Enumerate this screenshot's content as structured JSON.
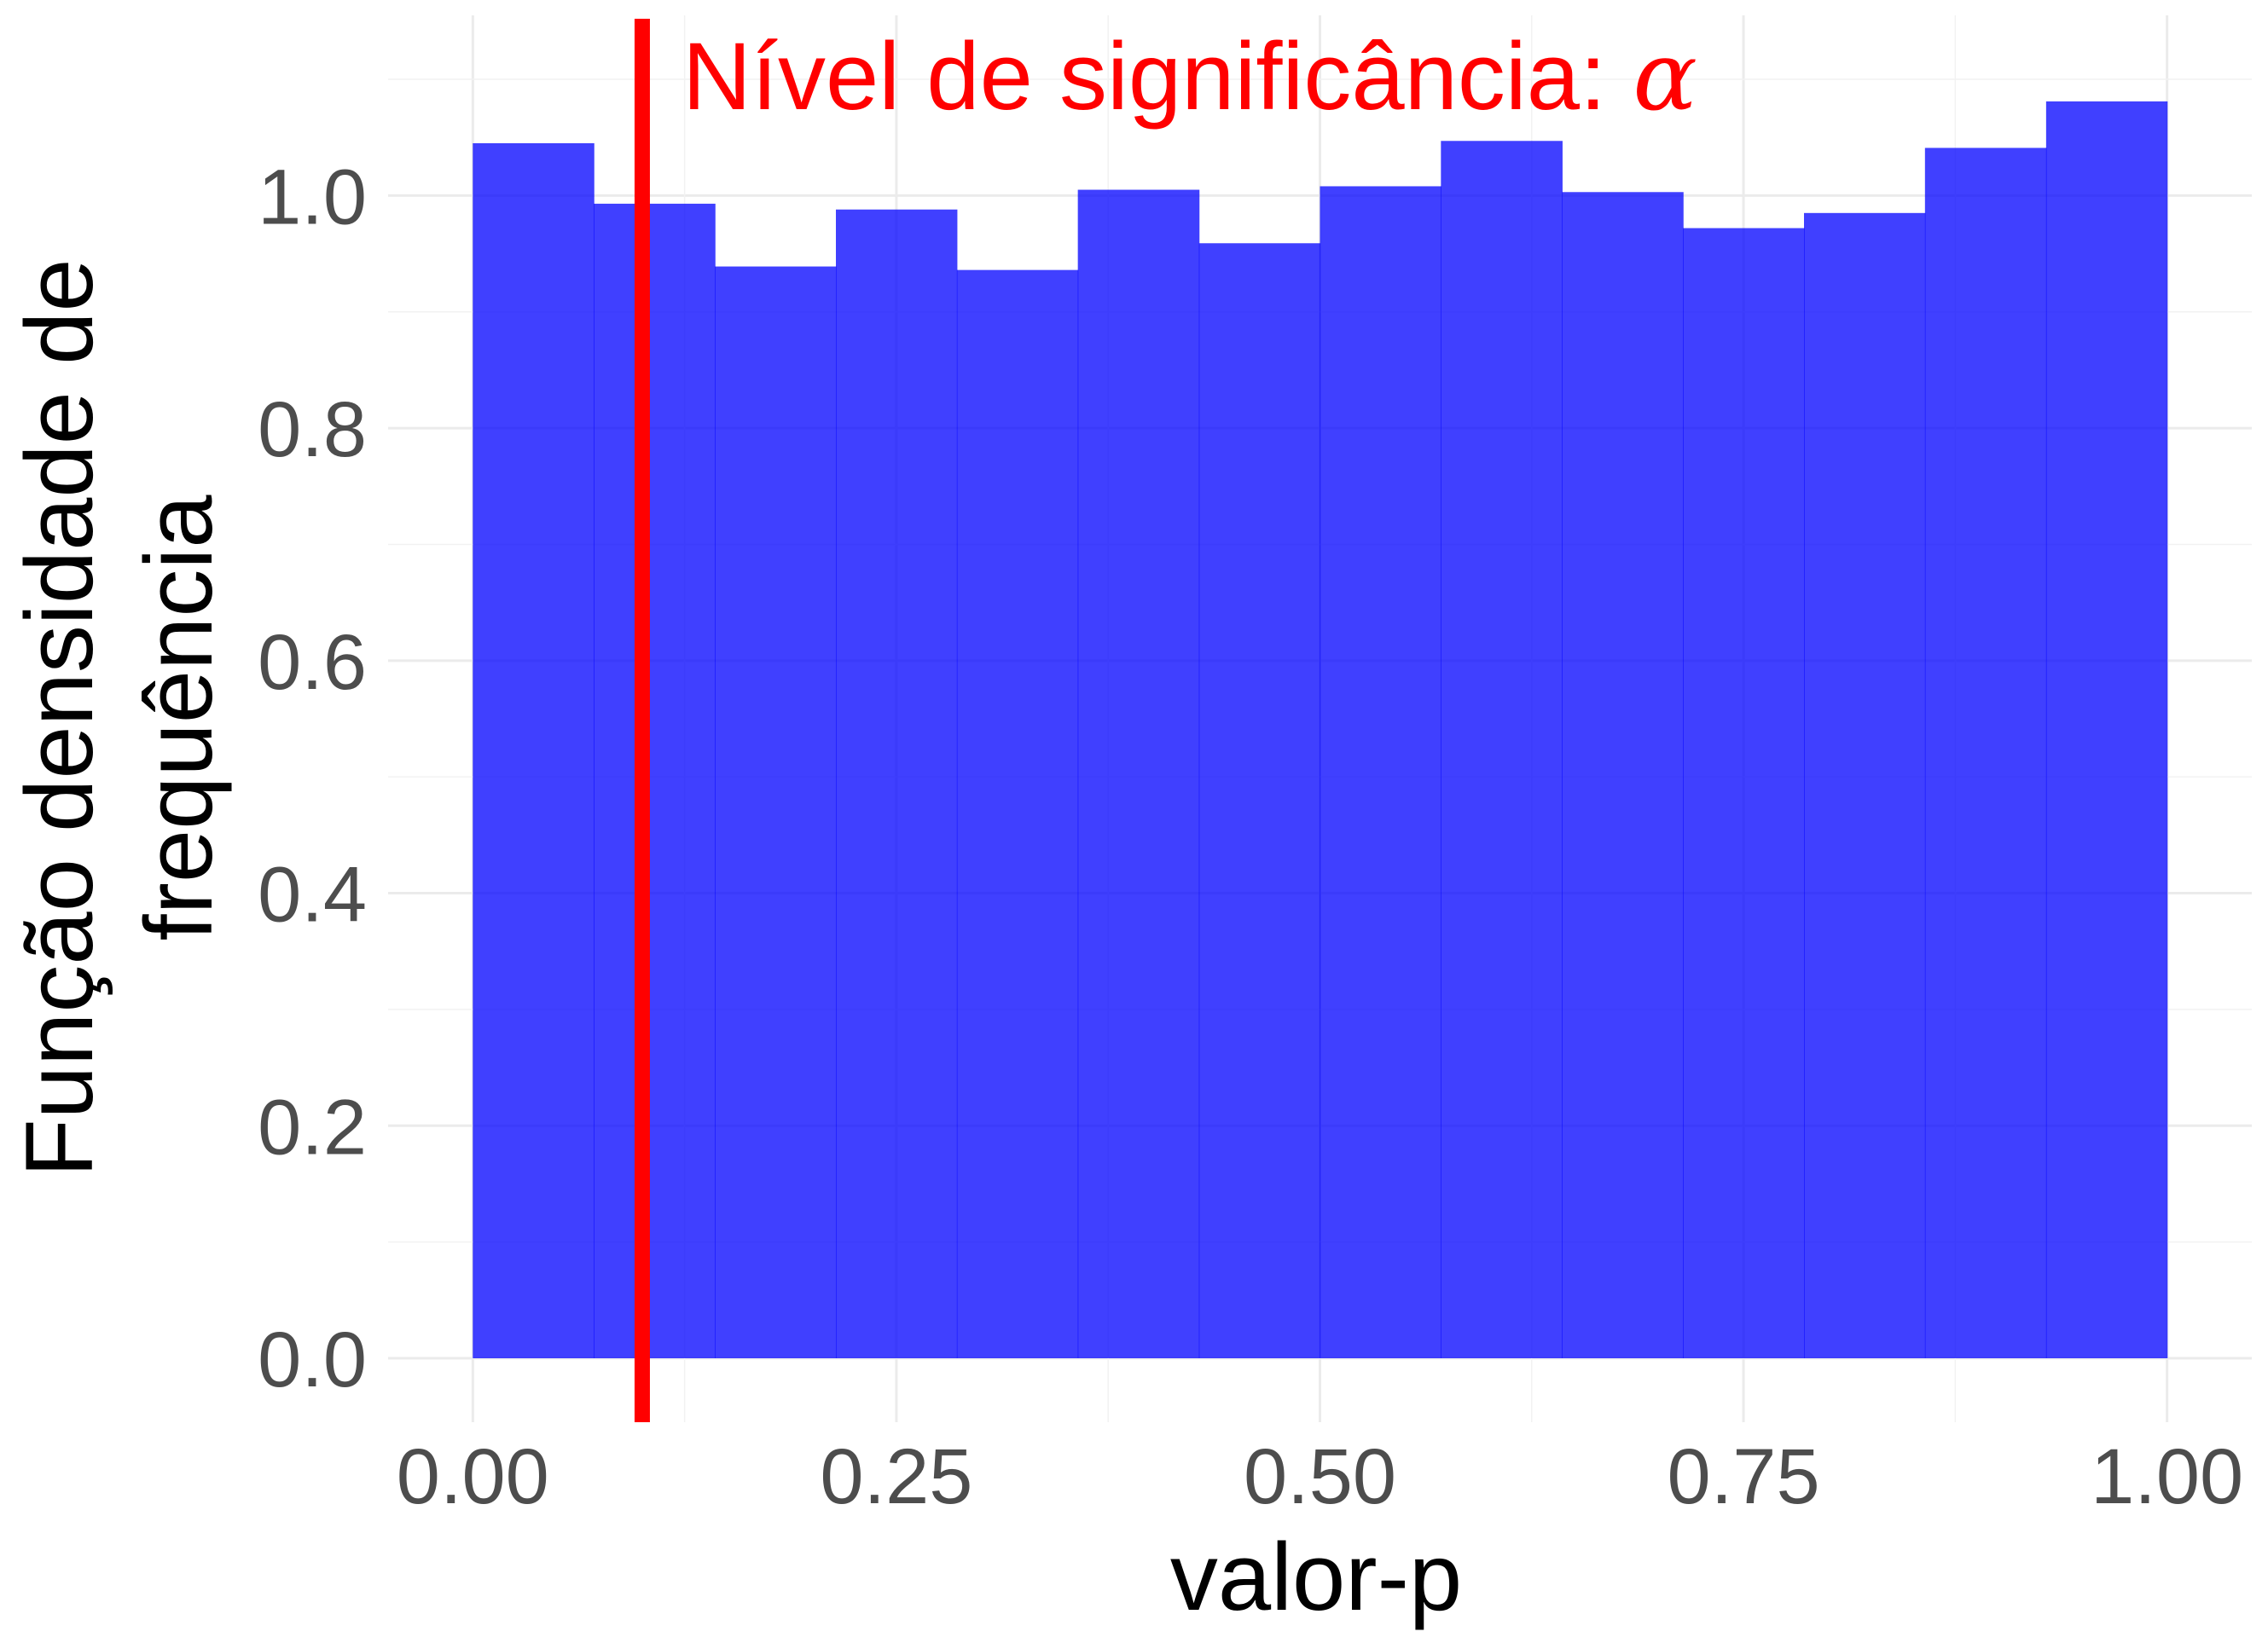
{
  "chart_data": {
    "type": "bar",
    "subtype": "histogram",
    "xlabel": "valor-p",
    "ylabel": [
      "Função densidade de",
      "frequência"
    ],
    "xlim": [
      -0.05,
      1.05
    ],
    "ylim": [
      -0.055,
      1.155
    ],
    "x_ticks": [
      0.0,
      0.25,
      0.5,
      0.75,
      1.0
    ],
    "x_tick_labels": [
      "0.00",
      "0.25",
      "0.50",
      "0.75",
      "1.00"
    ],
    "y_ticks": [
      0.0,
      0.2,
      0.4,
      0.6,
      0.8,
      1.0
    ],
    "y_tick_labels": [
      "0.0",
      "0.2",
      "0.4",
      "0.6",
      "0.8",
      "1.0"
    ],
    "grid": true,
    "bins": [
      {
        "start": 0.0,
        "end": 0.0714,
        "value": 1.045
      },
      {
        "start": 0.0714,
        "end": 0.1429,
        "value": 0.993
      },
      {
        "start": 0.1429,
        "end": 0.2143,
        "value": 0.939
      },
      {
        "start": 0.2143,
        "end": 0.2857,
        "value": 0.988
      },
      {
        "start": 0.2857,
        "end": 0.3571,
        "value": 0.936
      },
      {
        "start": 0.3571,
        "end": 0.4286,
        "value": 1.005
      },
      {
        "start": 0.4286,
        "end": 0.5,
        "value": 0.959
      },
      {
        "start": 0.5,
        "end": 0.5714,
        "value": 1.008
      },
      {
        "start": 0.5714,
        "end": 0.6429,
        "value": 1.047
      },
      {
        "start": 0.6429,
        "end": 0.7143,
        "value": 1.003
      },
      {
        "start": 0.7143,
        "end": 0.7857,
        "value": 0.972
      },
      {
        "start": 0.7857,
        "end": 0.8571,
        "value": 0.985
      },
      {
        "start": 0.8571,
        "end": 0.9286,
        "value": 1.041
      },
      {
        "start": 0.9286,
        "end": 1.0,
        "value": 1.081
      }
    ],
    "vline": {
      "x": 0.1,
      "label": "Nível de significância: ",
      "symbol": "α"
    },
    "colors": {
      "bars": "#0000ff",
      "bar_opacity": 0.75,
      "vline": "#ff0000",
      "grid": "#ebebeb"
    }
  }
}
